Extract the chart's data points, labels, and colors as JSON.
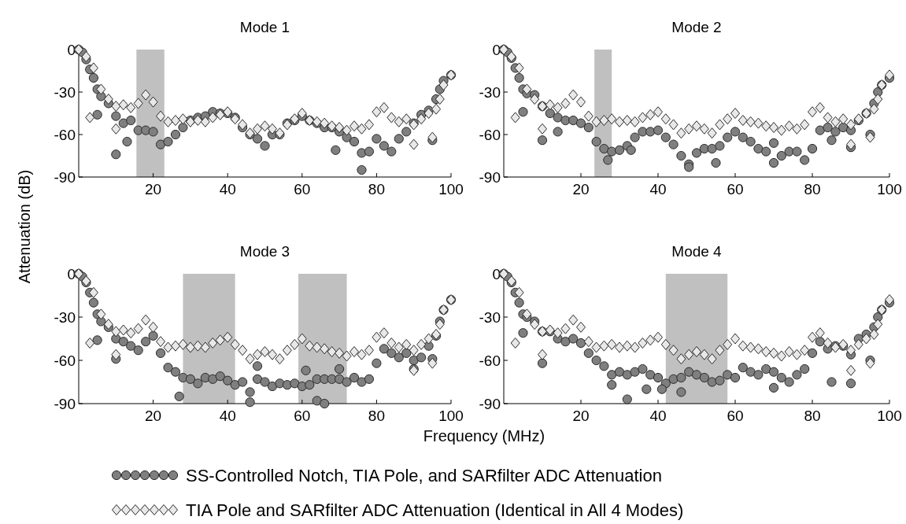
{
  "chart_data": [
    {
      "type": "scatter",
      "title": "Mode 1",
      "ylabel": "Attenuation (dB)",
      "xlim": [
        0,
        100
      ],
      "xticks": [
        20,
        40,
        60,
        80,
        100
      ],
      "ylim": [
        -90,
        0
      ],
      "yticks": [
        0,
        -30,
        -60,
        -90
      ],
      "legend": "bottom",
      "bands": [
        {
          "axis": "x",
          "from": 15.5,
          "to": 23,
          "color": "#c0c0c0"
        }
      ],
      "series": [
        {
          "name": "SS-Controlled Notch, TIA Pole, and SARfilter ADC Attenuation",
          "color": "#7f7f7f",
          "marker": "circle",
          "x": [
            0,
            1,
            2,
            3,
            4,
            5,
            6,
            8,
            10,
            12,
            14,
            16,
            18,
            20,
            22,
            24,
            26,
            28,
            30,
            32,
            34,
            36,
            38,
            40,
            42,
            44,
            46,
            48,
            50,
            52,
            54,
            56,
            58,
            60,
            62,
            64,
            66,
            68,
            70,
            72,
            74,
            76,
            78,
            80,
            82,
            84,
            86,
            88,
            90,
            92,
            94,
            96,
            97,
            98,
            100,
            5,
            10,
            13,
            69,
            76,
            95
          ],
          "values": [
            0,
            -2,
            -7,
            -14,
            -20,
            -28,
            -33,
            -38,
            -47,
            -52,
            -50,
            -57,
            -57,
            -58,
            -67,
            -65,
            -60,
            -55,
            -50,
            -48,
            -47,
            -44,
            -45,
            -45,
            -48,
            -55,
            -60,
            -63,
            -68,
            -60,
            -60,
            -52,
            -50,
            -47,
            -50,
            -52,
            -55,
            -55,
            -58,
            -62,
            -65,
            -73,
            -72,
            -63,
            -68,
            -72,
            -63,
            -58,
            -52,
            -46,
            -43,
            -35,
            -28,
            -22,
            -18,
            -46,
            -74,
            -65,
            -71,
            -85,
            -64
          ]
        },
        {
          "name": "TIA Pole and SARfilter ADC Attenuation (Identical in All 4 Modes)",
          "color": "#e8e8e8",
          "marker": "diamond",
          "x": [
            0,
            2,
            4,
            6,
            8,
            10,
            12,
            14,
            16,
            18,
            20,
            22,
            24,
            26,
            28,
            30,
            32,
            34,
            36,
            38,
            40,
            42,
            44,
            46,
            48,
            50,
            52,
            54,
            56,
            58,
            60,
            62,
            64,
            66,
            68,
            70,
            72,
            74,
            76,
            78,
            80,
            82,
            84,
            86,
            88,
            90,
            92,
            94,
            96,
            97,
            98,
            100,
            3,
            10,
            90,
            95
          ],
          "values": [
            0,
            -5,
            -13,
            -28,
            -35,
            -40,
            -39,
            -41,
            -38,
            -32,
            -37,
            -47,
            -51,
            -50,
            -49,
            -51,
            -50,
            -51,
            -48,
            -46,
            -44,
            -49,
            -53,
            -59,
            -56,
            -54,
            -56,
            -59,
            -53,
            -49,
            -45,
            -50,
            -51,
            -52,
            -54,
            -55,
            -57,
            -54,
            -56,
            -53,
            -44,
            -41,
            -48,
            -51,
            -49,
            -53,
            -49,
            -45,
            -42,
            -35,
            -25,
            -18,
            -48,
            -56,
            -67,
            -62
          ]
        }
      ]
    },
    {
      "type": "scatter",
      "title": "Mode 2",
      "xlim": [
        0,
        100
      ],
      "xticks": [
        20,
        40,
        60,
        80,
        100
      ],
      "ylim": [
        -90,
        0
      ],
      "yticks": [
        0,
        -30,
        -60,
        -90
      ],
      "bands": [
        {
          "axis": "x",
          "from": 23.5,
          "to": 28,
          "color": "#c0c0c0"
        }
      ],
      "series": [
        {
          "color": "#7f7f7f",
          "marker": "circle",
          "x": [
            0,
            1,
            2,
            3,
            4,
            5,
            6,
            8,
            10,
            12,
            14,
            16,
            18,
            20,
            22,
            24,
            26,
            27,
            28,
            30,
            32,
            34,
            36,
            38,
            40,
            42,
            44,
            46,
            48,
            50,
            52,
            54,
            56,
            58,
            60,
            62,
            64,
            66,
            68,
            70,
            72,
            74,
            76,
            78,
            80,
            82,
            84,
            86,
            88,
            90,
            92,
            94,
            96,
            97,
            98,
            100,
            5,
            10,
            14,
            33,
            48,
            55,
            70,
            85,
            90,
            95
          ],
          "values": [
            0,
            -2,
            -6,
            -13,
            -20,
            -28,
            -31,
            -32,
            -40,
            -45,
            -48,
            -50,
            -50,
            -52,
            -55,
            -65,
            -70,
            -78,
            -72,
            -71,
            -68,
            -62,
            -58,
            -58,
            -57,
            -62,
            -67,
            -75,
            -81,
            -73,
            -70,
            -70,
            -68,
            -62,
            -58,
            -62,
            -65,
            -70,
            -72,
            -66,
            -75,
            -72,
            -72,
            -78,
            -70,
            -57,
            -55,
            -58,
            -55,
            -57,
            -50,
            -45,
            -38,
            -30,
            -25,
            -20,
            -44,
            -64,
            -58,
            -71,
            -83,
            -80,
            -80,
            -64,
            -69,
            -60
          ]
        },
        {
          "color": "#e8e8e8",
          "marker": "diamond",
          "x": [
            0,
            2,
            4,
            6,
            8,
            10,
            12,
            14,
            16,
            18,
            20,
            22,
            24,
            26,
            28,
            30,
            32,
            34,
            36,
            38,
            40,
            42,
            44,
            46,
            48,
            50,
            52,
            54,
            56,
            58,
            60,
            62,
            64,
            66,
            68,
            70,
            72,
            74,
            76,
            78,
            80,
            82,
            84,
            86,
            88,
            90,
            92,
            94,
            96,
            97,
            98,
            100,
            3,
            10,
            90,
            95
          ],
          "values": [
            0,
            -5,
            -13,
            -28,
            -35,
            -40,
            -39,
            -41,
            -38,
            -32,
            -37,
            -47,
            -51,
            -50,
            -49,
            -51,
            -50,
            -51,
            -48,
            -46,
            -44,
            -49,
            -53,
            -59,
            -56,
            -54,
            -56,
            -59,
            -53,
            -49,
            -45,
            -50,
            -51,
            -52,
            -54,
            -55,
            -57,
            -54,
            -56,
            -53,
            -44,
            -41,
            -48,
            -51,
            -49,
            -53,
            -49,
            -45,
            -42,
            -35,
            -25,
            -18,
            -48,
            -56,
            -67,
            -62
          ]
        }
      ]
    },
    {
      "type": "scatter",
      "title": "Mode 3",
      "xlabel": "Frequency (MHz)",
      "xlim": [
        0,
        100
      ],
      "xticks": [
        20,
        40,
        60,
        80,
        100
      ],
      "ylim": [
        -90,
        0
      ],
      "yticks": [
        0,
        -30,
        -60,
        -90
      ],
      "bands": [
        {
          "axis": "x",
          "from": 28,
          "to": 42,
          "color": "#c0c0c0"
        },
        {
          "axis": "x",
          "from": 59,
          "to": 72,
          "color": "#c0c0c0"
        }
      ],
      "series": [
        {
          "color": "#7f7f7f",
          "marker": "circle",
          "x": [
            0,
            1,
            2,
            3,
            4,
            5,
            6,
            8,
            10,
            12,
            14,
            16,
            18,
            20,
            22,
            24,
            26,
            28,
            30,
            32,
            34,
            36,
            38,
            40,
            42,
            44,
            46,
            48,
            50,
            52,
            54,
            56,
            58,
            60,
            62,
            64,
            66,
            68,
            70,
            72,
            74,
            76,
            78,
            80,
            82,
            84,
            86,
            88,
            90,
            92,
            94,
            96,
            97,
            98,
            100,
            5,
            10,
            27,
            46,
            48,
            61,
            64,
            66,
            70,
            90,
            95
          ],
          "values": [
            0,
            -2,
            -6,
            -13,
            -20,
            -28,
            -33,
            -37,
            -45,
            -47,
            -50,
            -53,
            -47,
            -43,
            -55,
            -65,
            -68,
            -72,
            -73,
            -76,
            -72,
            -73,
            -71,
            -74,
            -77,
            -75,
            -82,
            -73,
            -75,
            -78,
            -76,
            -77,
            -76,
            -78,
            -77,
            -73,
            -73,
            -73,
            -73,
            -75,
            -72,
            -75,
            -73,
            -62,
            -52,
            -55,
            -58,
            -55,
            -60,
            -58,
            -50,
            -43,
            -33,
            -25,
            -18,
            -46,
            -59,
            -85,
            -89,
            -64,
            -67,
            -88,
            -90,
            -66,
            -66,
            -59
          ]
        },
        {
          "color": "#e8e8e8",
          "marker": "diamond",
          "x": [
            0,
            2,
            4,
            6,
            8,
            10,
            12,
            14,
            16,
            18,
            20,
            22,
            24,
            26,
            28,
            30,
            32,
            34,
            36,
            38,
            40,
            42,
            44,
            46,
            48,
            50,
            52,
            54,
            56,
            58,
            60,
            62,
            64,
            66,
            68,
            70,
            72,
            74,
            76,
            78,
            80,
            82,
            84,
            86,
            88,
            90,
            92,
            94,
            96,
            97,
            98,
            100,
            3,
            10,
            90,
            95
          ],
          "values": [
            0,
            -5,
            -13,
            -28,
            -35,
            -40,
            -39,
            -41,
            -38,
            -32,
            -37,
            -47,
            -51,
            -50,
            -49,
            -51,
            -50,
            -51,
            -48,
            -46,
            -44,
            -49,
            -53,
            -59,
            -56,
            -54,
            -56,
            -59,
            -53,
            -49,
            -45,
            -50,
            -51,
            -52,
            -54,
            -55,
            -57,
            -54,
            -56,
            -53,
            -44,
            -41,
            -48,
            -51,
            -49,
            -53,
            -49,
            -45,
            -42,
            -35,
            -25,
            -18,
            -48,
            -56,
            -67,
            -62
          ]
        }
      ]
    },
    {
      "type": "scatter",
      "title": "Mode 4",
      "xlim": [
        0,
        100
      ],
      "xticks": [
        20,
        40,
        60,
        80,
        100
      ],
      "ylim": [
        -90,
        0
      ],
      "yticks": [
        0,
        -30,
        -60,
        -90
      ],
      "bands": [
        {
          "axis": "x",
          "from": 42,
          "to": 58,
          "color": "#c0c0c0"
        }
      ],
      "series": [
        {
          "color": "#7f7f7f",
          "marker": "circle",
          "x": [
            0,
            1,
            2,
            3,
            4,
            5,
            6,
            8,
            10,
            12,
            14,
            16,
            18,
            20,
            22,
            24,
            26,
            28,
            30,
            32,
            34,
            36,
            38,
            40,
            42,
            44,
            46,
            48,
            50,
            52,
            54,
            56,
            58,
            60,
            62,
            64,
            66,
            68,
            70,
            72,
            74,
            76,
            78,
            80,
            82,
            84,
            86,
            88,
            90,
            92,
            94,
            96,
            97,
            98,
            100,
            5,
            10,
            28,
            32,
            37,
            41,
            46,
            70,
            85,
            90,
            95
          ],
          "values": [
            0,
            -2,
            -6,
            -13,
            -20,
            -28,
            -30,
            -33,
            -40,
            -40,
            -45,
            -47,
            -45,
            -48,
            -55,
            -60,
            -64,
            -70,
            -68,
            -70,
            -68,
            -66,
            -70,
            -72,
            -76,
            -73,
            -72,
            -68,
            -70,
            -72,
            -75,
            -74,
            -70,
            -72,
            -65,
            -68,
            -70,
            -66,
            -68,
            -72,
            -75,
            -70,
            -66,
            -55,
            -47,
            -52,
            -50,
            -50,
            -56,
            -45,
            -42,
            -37,
            -30,
            -25,
            -20,
            -41,
            -62,
            -77,
            -87,
            -80,
            -80,
            -82,
            -79,
            -75,
            -76,
            -60
          ]
        },
        {
          "color": "#e8e8e8",
          "marker": "diamond",
          "x": [
            0,
            2,
            4,
            6,
            8,
            10,
            12,
            14,
            16,
            18,
            20,
            22,
            24,
            26,
            28,
            30,
            32,
            34,
            36,
            38,
            40,
            42,
            44,
            46,
            48,
            50,
            52,
            54,
            56,
            58,
            60,
            62,
            64,
            66,
            68,
            70,
            72,
            74,
            76,
            78,
            80,
            82,
            84,
            86,
            88,
            90,
            92,
            94,
            96,
            97,
            98,
            100,
            3,
            10,
            90,
            95
          ],
          "values": [
            0,
            -5,
            -13,
            -28,
            -35,
            -40,
            -39,
            -41,
            -38,
            -32,
            -37,
            -47,
            -51,
            -50,
            -49,
            -51,
            -50,
            -51,
            -48,
            -46,
            -44,
            -49,
            -53,
            -59,
            -56,
            -54,
            -56,
            -59,
            -53,
            -49,
            -45,
            -50,
            -51,
            -52,
            -54,
            -55,
            -57,
            -54,
            -56,
            -53,
            -44,
            -41,
            -48,
            -51,
            -49,
            -53,
            -49,
            -45,
            -42,
            -35,
            -25,
            -18,
            -48,
            -56,
            -67,
            -62
          ]
        }
      ]
    }
  ]
}
